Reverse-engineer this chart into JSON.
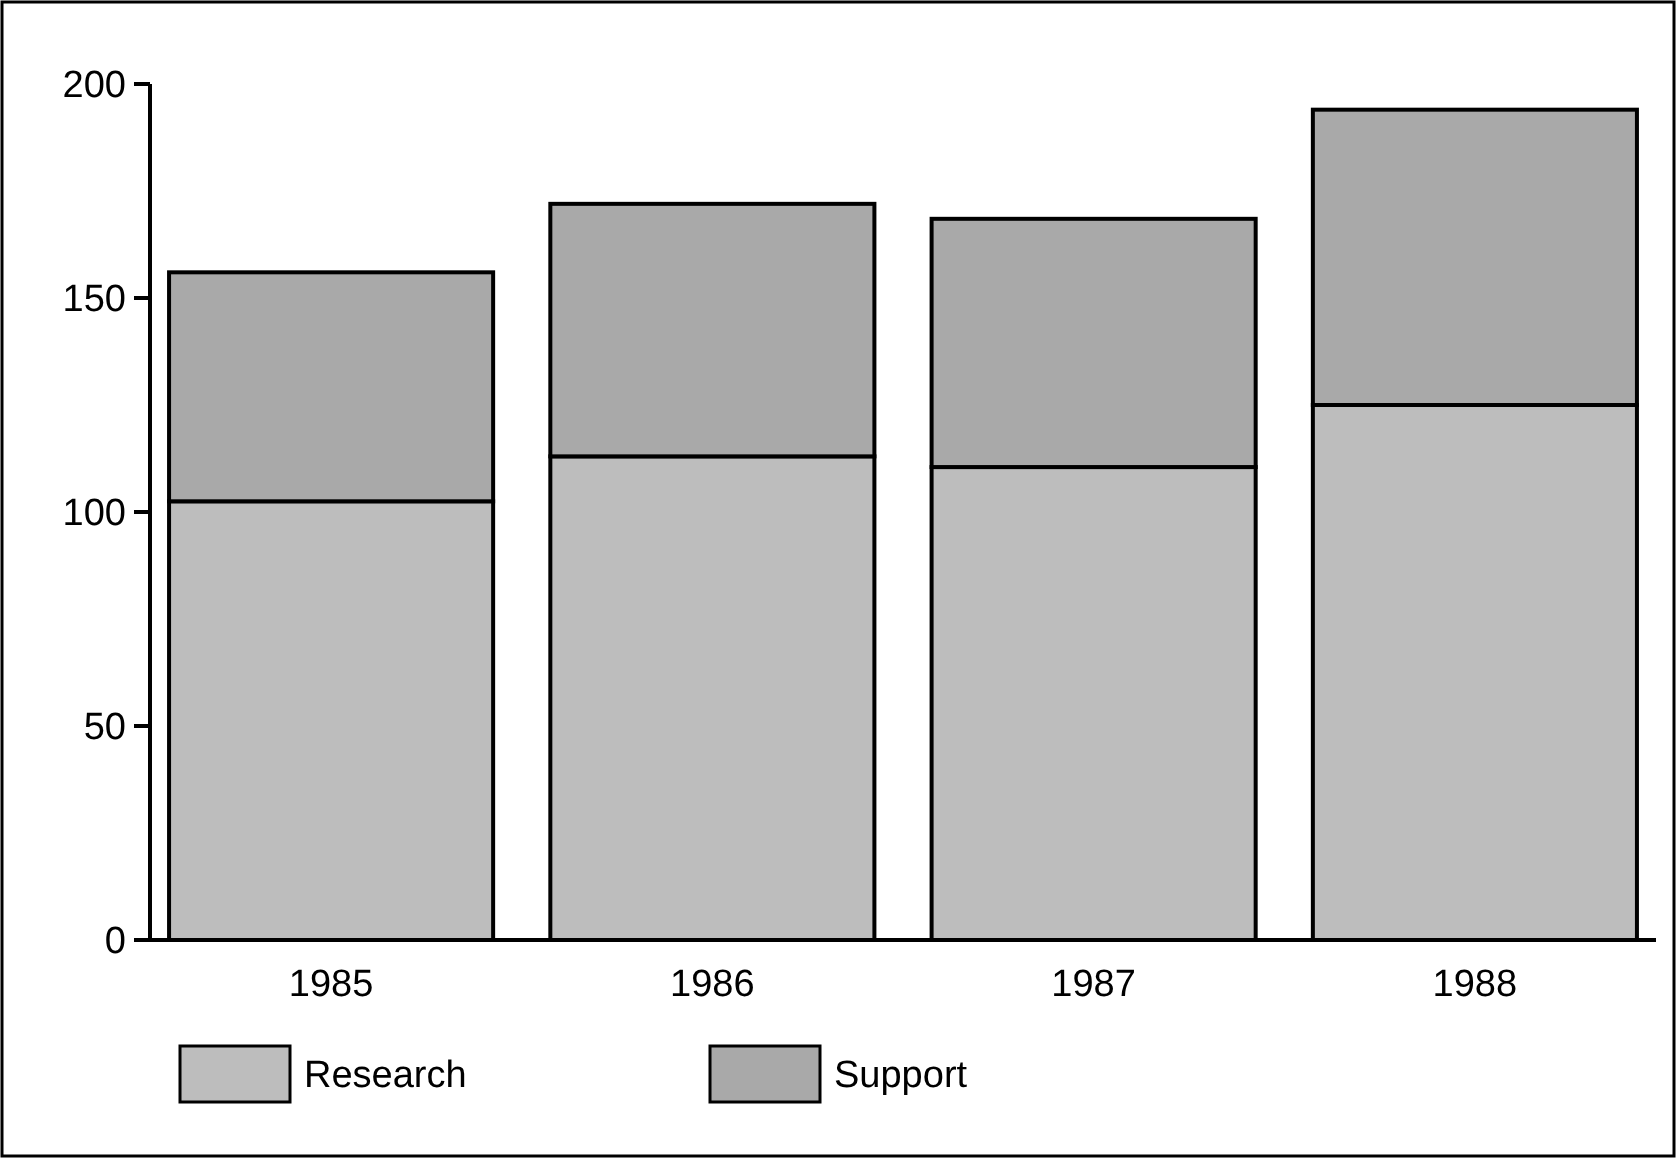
{
  "chart_data": {
    "type": "bar",
    "stacked": true,
    "categories": [
      "1985",
      "1986",
      "1987",
      "1988"
    ],
    "series": [
      {
        "name": "Research",
        "color": "#bdbdbd",
        "values": [
          102.5,
          113,
          110.5,
          125
        ]
      },
      {
        "name": "Support",
        "color": "#a9a9a9",
        "values": [
          53.5,
          59,
          58,
          69
        ]
      }
    ],
    "ylim": [
      0,
      200
    ],
    "yticks": [
      0,
      50,
      100,
      150,
      200
    ],
    "legend": "bottom"
  }
}
